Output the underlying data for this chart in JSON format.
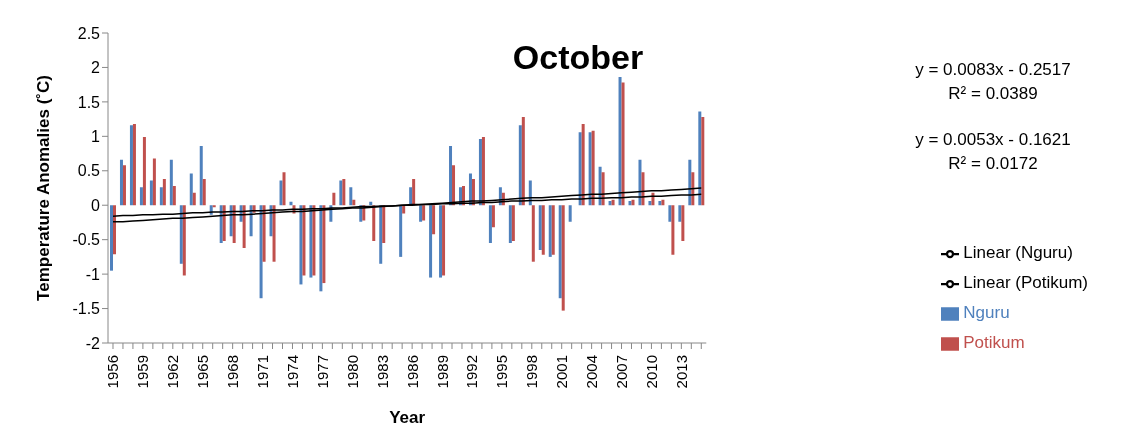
{
  "chart_data": {
    "type": "bar",
    "title": "October",
    "xlabel": "Year",
    "ylabel": "Temperature Anomalies (˚C)",
    "categories": [
      "1956",
      null,
      null,
      "1959",
      null,
      null,
      "1962",
      null,
      null,
      "1965",
      null,
      null,
      "1968",
      null,
      null,
      "1971",
      null,
      null,
      "1974",
      null,
      null,
      "1977",
      null,
      null,
      "1980",
      null,
      null,
      "1983",
      null,
      null,
      "1986",
      null,
      null,
      "1989",
      null,
      null,
      "1992",
      null,
      null,
      "1995",
      null,
      null,
      "1998",
      null,
      null,
      "2001",
      null,
      null,
      "2004",
      null,
      null,
      "2007",
      null,
      null,
      "2010",
      null,
      null,
      "2013",
      null,
      null
    ],
    "series": [
      {
        "name": "Nguru",
        "color": "#4f81bd",
        "values": [
          -0.95,
          0.66,
          1.16,
          0.26,
          0.36,
          0.26,
          0.66,
          -0.85,
          0.46,
          0.86,
          -0.14,
          -0.55,
          -0.45,
          -0.24,
          -0.45,
          -1.35,
          -0.45,
          0.36,
          0.05,
          -1.15,
          -1.05,
          -1.25,
          -0.24,
          0.36,
          0.26,
          -0.24,
          0.05,
          -0.85,
          null,
          -0.75,
          0.26,
          -0.24,
          -1.05,
          -1.05,
          0.86,
          0.26,
          0.46,
          0.96,
          -0.55,
          0.26,
          -0.55,
          1.16,
          0.36,
          -0.65,
          -0.75,
          -1.35,
          -0.24,
          1.06,
          1.06,
          0.56,
          0.06,
          1.86,
          0.06,
          0.66,
          0.06,
          0.06,
          -0.24,
          -0.24,
          0.66,
          1.36
        ]
      },
      {
        "name": "Potikum",
        "color": "#c0504d",
        "values": [
          -0.71,
          0.58,
          1.18,
          0.99,
          0.68,
          0.38,
          0.28,
          -1.02,
          0.18,
          0.38,
          -0.03,
          -0.52,
          -0.55,
          -0.62,
          -0.11,
          -0.82,
          -0.82,
          0.48,
          -0.12,
          -1.02,
          -1.02,
          -1.13,
          0.18,
          0.38,
          0.08,
          -0.22,
          -0.52,
          -0.55,
          null,
          -0.12,
          0.38,
          -0.22,
          -0.42,
          -1.02,
          0.58,
          0.28,
          0.38,
          0.99,
          -0.32,
          0.18,
          -0.52,
          1.28,
          -0.82,
          -0.72,
          -0.72,
          -1.53,
          0,
          1.18,
          1.08,
          0.48,
          0.08,
          1.78,
          0.08,
          0.48,
          0.18,
          0.08,
          -0.72,
          -0.52,
          0.48,
          1.28
        ]
      },
      {
        "name": "Linear (Nguru)",
        "type": "line",
        "color": "#000000",
        "values": [
          -0.24,
          -0.24,
          -0.23,
          -0.22,
          -0.21,
          -0.2,
          -0.19,
          -0.19,
          -0.18,
          -0.17,
          -0.16,
          -0.15,
          -0.14,
          -0.14,
          -0.13,
          -0.12,
          -0.11,
          -0.1,
          -0.09,
          -0.09,
          -0.08,
          -0.07,
          -0.06,
          -0.05,
          -0.04,
          -0.04,
          -0.03,
          -0.02,
          -0.01,
          0.0,
          0.01,
          0.01,
          0.02,
          0.03,
          0.04,
          0.05,
          0.06,
          0.06,
          0.07,
          0.08,
          0.09,
          0.1,
          0.11,
          0.11,
          0.12,
          0.13,
          0.14,
          0.15,
          0.16,
          0.16,
          0.17,
          0.18,
          0.19,
          0.2,
          0.21,
          0.21,
          0.22,
          0.23,
          0.24,
          0.25
        ]
      },
      {
        "name": "Linear (Potikum)",
        "type": "line",
        "color": "#000000",
        "values": [
          -0.16,
          -0.15,
          -0.15,
          -0.14,
          -0.14,
          -0.13,
          -0.13,
          -0.12,
          -0.11,
          -0.11,
          -0.1,
          -0.1,
          -0.09,
          -0.09,
          -0.08,
          -0.08,
          -0.07,
          -0.07,
          -0.06,
          -0.06,
          -0.05,
          -0.05,
          -0.04,
          -0.04,
          -0.03,
          -0.02,
          -0.02,
          -0.01,
          -0.01,
          0.0,
          0.0,
          0.01,
          0.01,
          0.02,
          0.02,
          0.03,
          0.03,
          0.04,
          0.04,
          0.05,
          0.06,
          0.06,
          0.07,
          0.07,
          0.08,
          0.08,
          0.09,
          0.09,
          0.1,
          0.1,
          0.11,
          0.11,
          0.12,
          0.12,
          0.13,
          0.13,
          0.14,
          0.15,
          0.15,
          0.16
        ]
      }
    ],
    "ylim": [
      -2,
      2.5
    ],
    "yticks": [
      -2,
      -1.5,
      -1,
      -0.5,
      0,
      0.5,
      1,
      1.5,
      2,
      2.5
    ],
    "grid": false,
    "legend": "right",
    "annotations": [
      "y = 0.0083x - 0.2517",
      "R² = 0.0389",
      "y = 0.0053x - 0.1621",
      "R² = 0.0172"
    ]
  }
}
